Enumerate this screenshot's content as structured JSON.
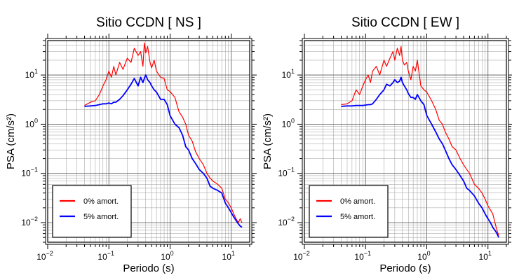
{
  "chart_data": [
    {
      "type": "line",
      "title": "Sitio CCDN [ NS ]",
      "xlabel": "Periodo (s)",
      "ylabel": "PSA (cm/s²)",
      "xscale": "log",
      "yscale": "log",
      "xlim": [
        0.01,
        20
      ],
      "ylim": [
        0.004,
        50
      ],
      "grid": true,
      "legend_position": "bottom-left",
      "x_ticks": [
        {
          "value": 0.01,
          "base": "10",
          "exp": "−2"
        },
        {
          "value": 0.1,
          "base": "10",
          "exp": "−1"
        },
        {
          "value": 1,
          "base": "10",
          "exp": "0"
        },
        {
          "value": 10,
          "base": "10",
          "exp": "1"
        }
      ],
      "y_ticks": [
        {
          "value": 0.01,
          "base": "10",
          "exp": "−2"
        },
        {
          "value": 0.1,
          "base": "10",
          "exp": "−1"
        },
        {
          "value": 1,
          "base": "10",
          "exp": "0"
        },
        {
          "value": 10,
          "base": "10",
          "exp": "1"
        }
      ],
      "series": [
        {
          "name": "0% amort.",
          "color": "#ff0000",
          "x": [
            0.04,
            0.05,
            0.06,
            0.07,
            0.08,
            0.09,
            0.1,
            0.11,
            0.12,
            0.13,
            0.15,
            0.17,
            0.2,
            0.23,
            0.26,
            0.3,
            0.33,
            0.36,
            0.38,
            0.4,
            0.43,
            0.47,
            0.5,
            0.55,
            0.6,
            0.7,
            0.8,
            0.9,
            1.0,
            1.2,
            1.4,
            1.6,
            1.8,
            2.0,
            2.3,
            2.6,
            3.0,
            3.5,
            4.0,
            4.5,
            5.0,
            6.0,
            7.0,
            8.0,
            9.0,
            10,
            11,
            12,
            13,
            14,
            15
          ],
          "y": [
            2.4,
            2.8,
            3.0,
            4.0,
            6.0,
            8.0,
            12,
            9.0,
            15,
            10,
            18,
            13,
            22,
            18,
            35,
            25,
            30,
            15,
            45,
            28,
            38,
            18,
            14,
            20,
            12,
            9.0,
            8.5,
            5.0,
            4.6,
            3.5,
            1.8,
            1.4,
            1.0,
            0.6,
            0.45,
            0.28,
            0.2,
            0.15,
            0.1,
            0.08,
            0.07,
            0.06,
            0.05,
            0.03,
            0.025,
            0.02,
            0.015,
            0.012,
            0.01,
            0.012,
            0.01
          ]
        },
        {
          "name": "5% amort.",
          "color": "#0000ff",
          "x": [
            0.04,
            0.05,
            0.06,
            0.07,
            0.08,
            0.09,
            0.1,
            0.11,
            0.12,
            0.13,
            0.15,
            0.17,
            0.2,
            0.23,
            0.26,
            0.3,
            0.33,
            0.36,
            0.38,
            0.4,
            0.43,
            0.47,
            0.5,
            0.55,
            0.6,
            0.7,
            0.8,
            0.9,
            1.0,
            1.2,
            1.4,
            1.6,
            1.8,
            2.0,
            2.3,
            2.6,
            3.0,
            3.5,
            4.0,
            4.5,
            5.0,
            6.0,
            7.0,
            8.0,
            9.0,
            10,
            11,
            12,
            13,
            14,
            15
          ],
          "y": [
            2.3,
            2.35,
            2.4,
            2.5,
            2.6,
            2.6,
            2.7,
            2.6,
            2.8,
            2.8,
            3.2,
            3.8,
            5.0,
            6.5,
            8.5,
            6.0,
            9.0,
            7.0,
            8.5,
            10,
            8.0,
            7.0,
            6.0,
            5.0,
            4.5,
            3.2,
            3.2,
            2.5,
            1.5,
            1.0,
            0.85,
            0.6,
            0.35,
            0.3,
            0.2,
            0.16,
            0.12,
            0.1,
            0.08,
            0.055,
            0.05,
            0.045,
            0.04,
            0.025,
            0.02,
            0.016,
            0.013,
            0.011,
            0.0095,
            0.0085,
            0.008
          ]
        }
      ]
    },
    {
      "type": "line",
      "title": "Sitio CCDN [ EW ]",
      "xlabel": "Periodo (s)",
      "ylabel": "PSA (cm/s²)",
      "xscale": "log",
      "yscale": "log",
      "xlim": [
        0.01,
        20
      ],
      "ylim": [
        0.004,
        50
      ],
      "grid": true,
      "legend_position": "bottom-left",
      "x_ticks": [
        {
          "value": 0.01,
          "base": "10",
          "exp": "−2"
        },
        {
          "value": 0.1,
          "base": "10",
          "exp": "−1"
        },
        {
          "value": 1,
          "base": "10",
          "exp": "0"
        },
        {
          "value": 10,
          "base": "10",
          "exp": "1"
        }
      ],
      "y_ticks": [
        {
          "value": 0.01,
          "base": "10",
          "exp": "−2"
        },
        {
          "value": 0.1,
          "base": "10",
          "exp": "−1"
        },
        {
          "value": 1,
          "base": "10",
          "exp": "0"
        },
        {
          "value": 10,
          "base": "10",
          "exp": "1"
        }
      ],
      "series": [
        {
          "name": "0% amort.",
          "color": "#ff0000",
          "x": [
            0.04,
            0.05,
            0.06,
            0.07,
            0.08,
            0.09,
            0.1,
            0.11,
            0.12,
            0.13,
            0.15,
            0.17,
            0.2,
            0.22,
            0.25,
            0.28,
            0.3,
            0.33,
            0.36,
            0.38,
            0.4,
            0.43,
            0.47,
            0.5,
            0.55,
            0.6,
            0.65,
            0.7,
            0.8,
            0.9,
            1.0,
            1.2,
            1.4,
            1.6,
            1.8,
            2.0,
            2.3,
            2.6,
            3.0,
            3.5,
            4.0,
            4.5,
            5.0,
            6.0,
            7.0,
            8.0,
            9.0,
            10,
            11,
            12,
            13,
            14,
            15
          ],
          "y": [
            2.5,
            2.6,
            3.0,
            5.0,
            4.0,
            6.0,
            8.0,
            10,
            7.0,
            12,
            15,
            10,
            20,
            15,
            22,
            30,
            20,
            35,
            25,
            38,
            20,
            16,
            18,
            12,
            8.0,
            15,
            12,
            20,
            6.0,
            5.0,
            4.5,
            3.0,
            2.0,
            1.2,
            1.0,
            0.7,
            0.5,
            0.35,
            0.3,
            0.2,
            0.15,
            0.12,
            0.1,
            0.06,
            0.05,
            0.04,
            0.03,
            0.022,
            0.018,
            0.015,
            0.01,
            0.007,
            0.0055
          ]
        },
        {
          "name": "5% amort.",
          "color": "#0000ff",
          "x": [
            0.04,
            0.05,
            0.06,
            0.07,
            0.08,
            0.09,
            0.1,
            0.11,
            0.12,
            0.13,
            0.15,
            0.17,
            0.2,
            0.22,
            0.25,
            0.28,
            0.3,
            0.33,
            0.36,
            0.38,
            0.4,
            0.43,
            0.47,
            0.5,
            0.55,
            0.6,
            0.65,
            0.7,
            0.8,
            0.9,
            1.0,
            1.2,
            1.4,
            1.6,
            1.8,
            2.0,
            2.3,
            2.6,
            3.0,
            3.5,
            4.0,
            4.5,
            5.0,
            6.0,
            7.0,
            8.0,
            9.0,
            10,
            11,
            12,
            13,
            14,
            15
          ],
          "y": [
            2.3,
            2.35,
            2.35,
            2.4,
            2.4,
            2.4,
            2.45,
            2.5,
            2.5,
            2.6,
            3.2,
            4.0,
            5.0,
            6.5,
            6.0,
            7.0,
            8.0,
            7.0,
            7.5,
            9.0,
            7.0,
            6.0,
            5.0,
            4.2,
            3.5,
            3.5,
            3.2,
            4.0,
            3.0,
            2.5,
            1.5,
            1.0,
            0.7,
            0.5,
            0.4,
            0.3,
            0.2,
            0.15,
            0.12,
            0.09,
            0.07,
            0.05,
            0.045,
            0.035,
            0.025,
            0.02,
            0.015,
            0.012,
            0.01,
            0.008,
            0.007,
            0.006,
            0.005
          ]
        }
      ]
    }
  ]
}
